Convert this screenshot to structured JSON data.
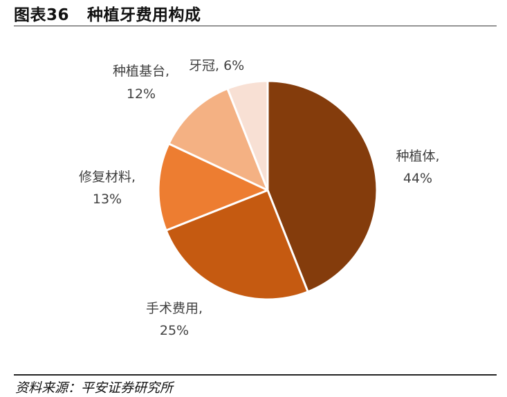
{
  "figure": {
    "number": "图表36",
    "title": "种植牙费用构成",
    "source": "资料来源：平安证券研究所"
  },
  "chart_data": {
    "type": "pie",
    "title": "种植牙费用构成",
    "start": "12 o'clock",
    "direction": "clockwise",
    "slices": [
      {
        "name": "种植体",
        "value": 44,
        "value_label": "44%",
        "color": "#843c0c"
      },
      {
        "name": "手术费用",
        "value": 25,
        "value_label": "25%",
        "color": "#c55a11"
      },
      {
        "name": "修复材料",
        "value": 13,
        "value_label": "13%",
        "color": "#ed7d31"
      },
      {
        "name": "种植基台",
        "value": 12,
        "value_label": "12%",
        "color": "#f4b183"
      },
      {
        "name": "牙冠",
        "value": 6,
        "value_label": "6%",
        "color": "#f8e0d4"
      }
    ]
  }
}
